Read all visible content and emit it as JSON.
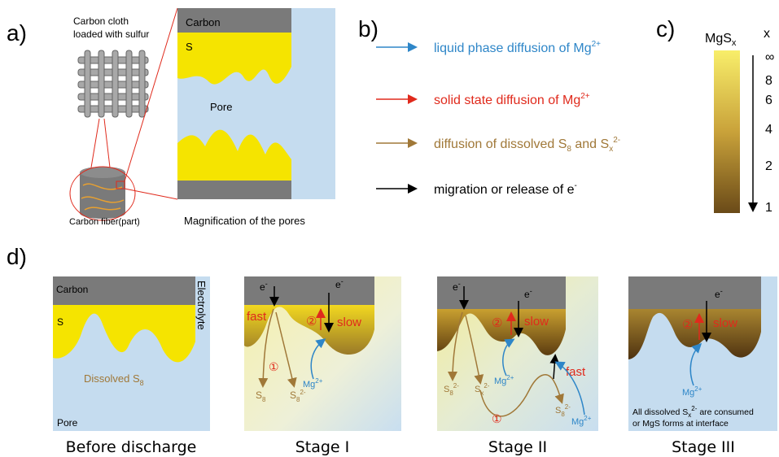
{
  "panel_a": {
    "label": "a)",
    "cloth_label": [
      "Carbon cloth",
      "loaded with sulfur"
    ],
    "fiber_label": "Carbon fiber(part)",
    "magnified": {
      "carbon": "Carbon",
      "sulfur": "S",
      "pore": "Pore"
    },
    "caption": "Magnification of the pores"
  },
  "panel_b": {
    "label": "b)",
    "legend": [
      {
        "text": "liquid phase diffusion of Mg",
        "sup": "2+"
      },
      {
        "text": "solid state diffusion of Mg",
        "sup": "2+"
      },
      {
        "text": "diffusion of dissolved S",
        "sub": "8",
        "text2": " and S",
        "sub2": "x",
        "sup2": "2-"
      },
      {
        "text": "migration or release of e",
        "sup": "-"
      }
    ]
  },
  "panel_c": {
    "label": "c)",
    "title": "MgS",
    "title_sub": "x",
    "axis_label": "x",
    "scale_labels": [
      "∞",
      "8",
      "6",
      "4",
      "2",
      "1"
    ]
  },
  "panel_d": {
    "label": "d)",
    "stages": [
      {
        "caption": "Before discharge",
        "carbon": "Carbon",
        "electrolyte": "Electrolyte",
        "sulfur": "S",
        "dissolved": "Dissolved S",
        "dissolved_sub": "8",
        "pore": "Pore"
      },
      {
        "caption": "Stage I",
        "electron": "e",
        "electron_sup": "-",
        "fast": "fast",
        "slow": "slow",
        "step1": "①",
        "step2": "②",
        "mg": "Mg",
        "mg_sup": "2+",
        "s8": "S",
        "s8_sub": "8",
        "s8_2": "S",
        "s8_2_sub": "8",
        "s8_2_sup": "2-"
      },
      {
        "caption": "Stage II",
        "electron": "e",
        "electron_sup": "-",
        "fast": "fast",
        "slow": "slow",
        "step1": "①",
        "step2": "②",
        "mg": "Mg",
        "mg_sup": "2+",
        "s8_2": "S",
        "s8_2_sub": "8",
        "s8_2_sup": "2-",
        "sx": "S",
        "sx_sub": "x",
        "sx_sup": "2-"
      },
      {
        "caption": "Stage III",
        "electron": "e",
        "electron_sup": "-",
        "slow": "slow",
        "step2": "②",
        "mg": "Mg",
        "mg_sup": "2+",
        "note1": "All dissolved S",
        "note1_sub": "x",
        "note1_sup": "2-",
        "note1_end": " are consumed",
        "note2": "or MgS forms at interface"
      }
    ]
  }
}
